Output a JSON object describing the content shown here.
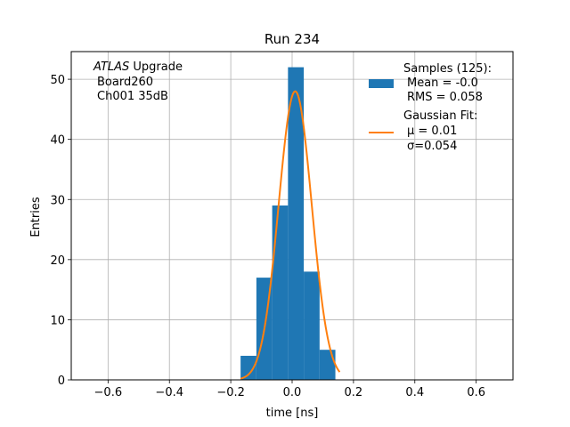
{
  "chart_data": {
    "type": "bar",
    "title": "Run 234",
    "xlabel": "time [ns]",
    "ylabel": "Entries",
    "xlim": [
      -0.72,
      0.72
    ],
    "ylim": [
      0,
      54.6
    ],
    "xticks": [
      -0.6,
      -0.4,
      -0.2,
      0.0,
      0.2,
      0.4,
      0.6
    ],
    "xtick_labels": [
      "−0.6",
      "−0.4",
      "−0.2",
      "0.0",
      "0.2",
      "0.4",
      "0.6"
    ],
    "yticks": [
      0,
      10,
      20,
      30,
      40,
      50
    ],
    "ytick_labels": [
      "0",
      "10",
      "20",
      "30",
      "40",
      "50"
    ],
    "grid": true,
    "annotation": {
      "italic": "ATLAS",
      "rest": " Upgrade",
      "line2": "Board260",
      "line3": "Ch001 35dB"
    },
    "histogram": {
      "name": "Samples (125):",
      "stats": [
        "Mean = -0.0",
        "RMS = 0.058"
      ],
      "color": "#1f77b4",
      "bin_edges": [
        -0.168,
        -0.1165,
        -0.065,
        -0.0135,
        0.038,
        0.0895,
        0.141,
        0.1925
      ],
      "counts": [
        4,
        17,
        29,
        52,
        18,
        5,
        0
      ]
    },
    "fit": {
      "name": "Gaussian Fit:",
      "stats": [
        "μ = 0.01",
        "σ=0.054"
      ],
      "color": "#ff7f0e",
      "mu": 0.01,
      "sigma": 0.054,
      "amplitude": 48,
      "x_range": [
        -0.168,
        0.155
      ]
    },
    "legend_placement": "top-right"
  }
}
